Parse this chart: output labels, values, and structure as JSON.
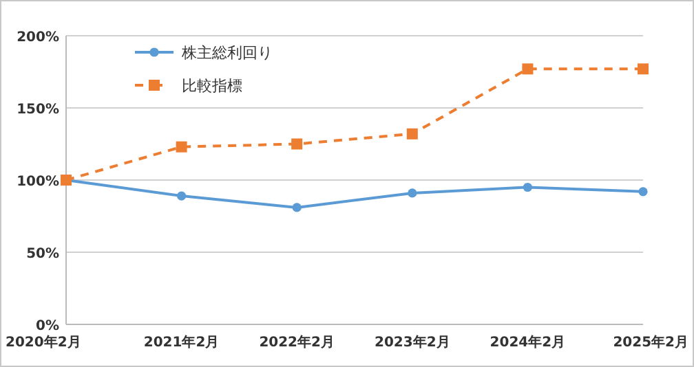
{
  "chart_data": {
    "type": "line",
    "categories": [
      "2020年2月",
      "2021年2月",
      "2022年2月",
      "2023年2月",
      "2024年2月",
      "2025年2月"
    ],
    "series": [
      {
        "name": "株主総利回り",
        "color": "#5b9bd5",
        "values": [
          100,
          89,
          81,
          91,
          95,
          92
        ],
        "marker": "circle",
        "line_style": "solid"
      },
      {
        "name": "比較指標",
        "color": "#ed7d31",
        "values": [
          100,
          123,
          125,
          132,
          177,
          177
        ],
        "marker": "square",
        "line_style": "dashed"
      }
    ],
    "ylim": [
      0,
      200
    ],
    "yticks": [
      {
        "value": 0,
        "label": "0%"
      },
      {
        "value": 50,
        "label": "50%"
      },
      {
        "value": 100,
        "label": "100%"
      },
      {
        "value": 150,
        "label": "150%"
      },
      {
        "value": 200,
        "label": "200%"
      }
    ],
    "grid": "y",
    "legend": "top left"
  }
}
